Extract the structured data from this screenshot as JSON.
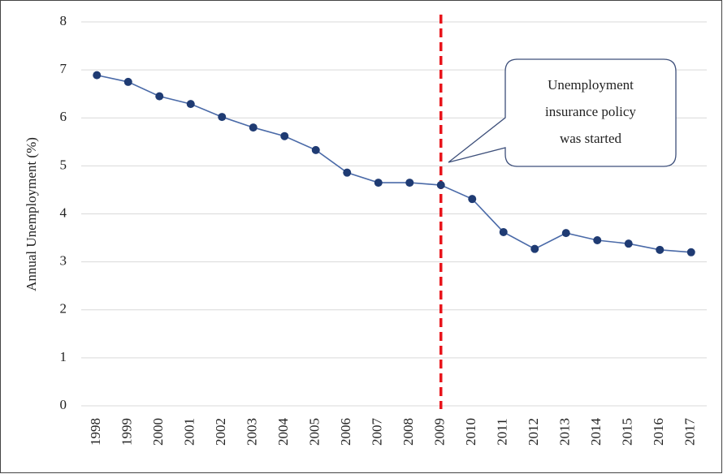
{
  "chart_data": {
    "type": "line",
    "y_label": "Annual Unemployment (%)",
    "categories": [
      "1998",
      "1999",
      "2000",
      "2001",
      "2002",
      "2003",
      "2004",
      "2005",
      "2006",
      "2007",
      "2008",
      "2009",
      "2010",
      "2011",
      "2012",
      "2013",
      "2014",
      "2015",
      "2016",
      "2017"
    ],
    "series": [
      {
        "name": "Annual Unemployment",
        "color": "#1f3b73",
        "values": [
          6.89,
          6.75,
          6.45,
          6.29,
          6.02,
          5.8,
          5.62,
          5.33,
          4.86,
          4.65,
          4.65,
          4.6,
          4.31,
          3.62,
          3.27,
          3.6,
          3.45,
          3.38,
          3.25,
          3.2
        ]
      }
    ],
    "line_color": "#4a6aa8",
    "ylim": [
      0,
      8
    ],
    "yticks": [
      0,
      1,
      2,
      3,
      4,
      5,
      6,
      7,
      8
    ],
    "grid": true,
    "reference_line": {
      "x": "2009",
      "color": "#e8141b"
    },
    "annotation": [
      "Unemployment",
      "insurance policy",
      "was started"
    ]
  }
}
